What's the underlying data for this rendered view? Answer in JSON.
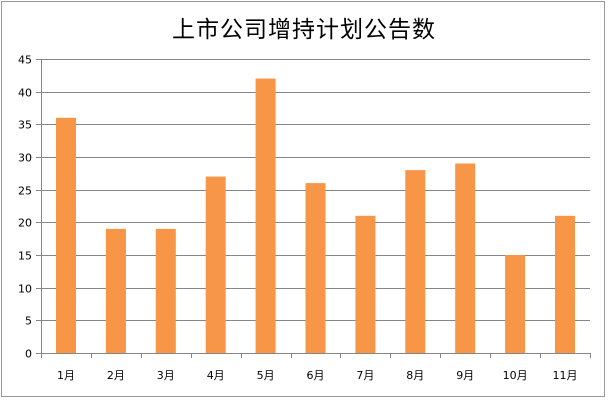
{
  "chart_data": {
    "type": "bar",
    "title": "上市公司增持计划公告数",
    "categories": [
      "1月",
      "2月",
      "3月",
      "4月",
      "5月",
      "6月",
      "7月",
      "8月",
      "9月",
      "10月",
      "11月"
    ],
    "series": [
      {
        "values": [
          36,
          19,
          19,
          27,
          42,
          26,
          21,
          28,
          29,
          15,
          21
        ]
      }
    ],
    "ylim": [
      0,
      45
    ],
    "yticks": [
      0,
      5,
      10,
      15,
      20,
      25,
      30,
      35,
      40,
      45
    ],
    "xlabel": "",
    "ylabel": "",
    "grid": true,
    "legend": "none",
    "bar_color": "#f79646",
    "grid_color": "#868686"
  }
}
